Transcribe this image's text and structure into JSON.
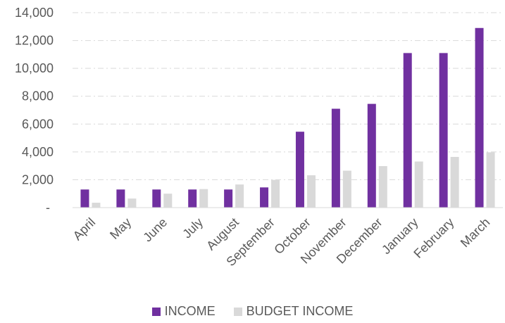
{
  "chart_data": {
    "type": "bar",
    "categories": [
      "April",
      "May",
      "June",
      "July",
      "August",
      "September",
      "October",
      "November",
      "December",
      "January",
      "February",
      "March"
    ],
    "series": [
      {
        "name": "INCOME",
        "color": "#7030a0",
        "values": [
          1300,
          1300,
          1300,
          1300,
          1300,
          1450,
          5450,
          7100,
          7450,
          11100,
          11100,
          12900
        ]
      },
      {
        "name": "BUDGET INCOME",
        "color": "#d9d9d9",
        "values": [
          350,
          650,
          1000,
          1330,
          1660,
          1990,
          2320,
          2650,
          2980,
          3310,
          3640,
          3970
        ]
      }
    ],
    "y_ticks": [
      "-",
      "2,000",
      "4,000",
      "6,000",
      "8,000",
      "10,000",
      "12,000",
      "14,000"
    ],
    "ylim": [
      0,
      14000
    ],
    "grid": true,
    "legend_position": "bottom"
  }
}
